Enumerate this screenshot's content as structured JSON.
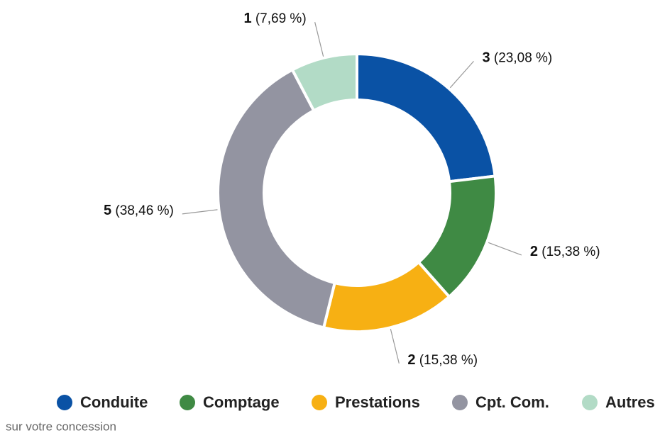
{
  "chart_data": {
    "type": "donut",
    "categories": [
      "Conduite",
      "Comptage",
      "Prestations",
      "Cpt. Com.",
      "Autres"
    ],
    "values": [
      3,
      2,
      2,
      5,
      1
    ],
    "percentages": [
      23.08,
      15.38,
      15.38,
      38.46,
      7.69
    ],
    "percentage_labels": [
      "(23,08 %)",
      "(15,38 %)",
      "(15,38 %)",
      "(38,46 %)",
      "(7,69 %)"
    ],
    "colors": [
      "#0a52a5",
      "#3f8a44",
      "#f7b013",
      "#9394a1",
      "#b2dbc6"
    ],
    "legend": "bottom",
    "footnote": "sur votre concession"
  }
}
